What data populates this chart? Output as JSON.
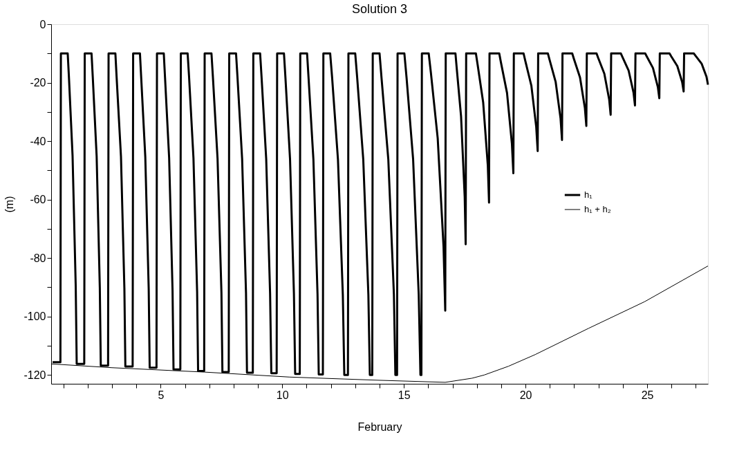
{
  "chart_data": {
    "type": "line",
    "title": "Solution 3",
    "xlabel": "February",
    "ylabel": "(m)",
    "xlim": [
      0.5,
      27.5
    ],
    "ylim": [
      -123,
      0
    ],
    "xticks": [
      {
        "value": 1,
        "label": null
      },
      {
        "value": 2,
        "label": null
      },
      {
        "value": 3,
        "label": null
      },
      {
        "value": 4,
        "label": null
      },
      5,
      {
        "value": 6,
        "label": null
      },
      {
        "value": 7,
        "label": null
      },
      {
        "value": 8,
        "label": null
      },
      {
        "value": 9,
        "label": null
      },
      10,
      {
        "value": 11,
        "label": null
      },
      {
        "value": 12,
        "label": null
      },
      {
        "value": 13,
        "label": null
      },
      {
        "value": 14,
        "label": null
      },
      15,
      {
        "value": 16,
        "label": null
      },
      {
        "value": 17,
        "label": null
      },
      {
        "value": 18,
        "label": null
      },
      {
        "value": 19,
        "label": null
      },
      20,
      {
        "value": 21,
        "label": null
      },
      {
        "value": 22,
        "label": null
      },
      {
        "value": 23,
        "label": null
      },
      {
        "value": 24,
        "label": null
      },
      25,
      {
        "value": 26,
        "label": null
      },
      {
        "value": 27,
        "label": null
      }
    ],
    "yticks": [
      -120,
      {
        "value": -110,
        "label": null
      },
      -100,
      {
        "value": -90,
        "label": null
      },
      -80,
      {
        "value": -70,
        "label": null
      },
      -60,
      {
        "value": -50,
        "label": null
      },
      -40,
      {
        "value": -30,
        "label": null
      },
      -20,
      {
        "value": -10,
        "label": null
      },
      0
    ],
    "grid": false,
    "legend": "right",
    "marker": "none",
    "line_style": "solid",
    "series": [
      {
        "name": "h₁",
        "color": "#000000",
        "x": [
          0.56,
          0.88,
          0.9,
          1.18,
          1.23,
          1.38,
          1.51,
          1.55,
          1.86,
          1.88,
          2.16,
          2.21,
          2.37,
          2.5,
          2.54,
          2.84,
          2.86,
          3.14,
          3.19,
          3.37,
          3.51,
          3.55,
          3.85,
          3.87,
          4.15,
          4.2,
          4.37,
          4.51,
          4.55,
          4.83,
          4.85,
          5.13,
          5.18,
          5.35,
          5.49,
          5.53,
          5.81,
          5.83,
          6.11,
          6.17,
          6.35,
          6.5,
          6.54,
          6.79,
          6.81,
          7.09,
          7.15,
          7.34,
          7.5,
          7.54,
          7.8,
          7.82,
          8.1,
          8.16,
          8.35,
          8.51,
          8.55,
          8.79,
          8.81,
          9.09,
          9.15,
          9.34,
          9.5,
          9.55,
          9.77,
          9.79,
          10.07,
          10.13,
          10.32,
          10.48,
          10.53,
          10.72,
          10.74,
          11.02,
          11.08,
          11.28,
          11.45,
          11.5,
          11.67,
          11.69,
          11.97,
          12.05,
          12.29,
          12.49,
          12.55,
          12.7,
          12.72,
          13.0,
          13.08,
          13.33,
          13.54,
          13.6,
          13.7,
          13.72,
          14.0,
          14.08,
          14.36,
          14.59,
          14.65,
          14.72,
          14.74,
          15.02,
          15.11,
          15.38,
          15.61,
          15.68,
          15.72,
          15.74,
          16.02,
          16.11,
          16.39,
          16.63,
          16.7,
          16.72,
          17.12,
          17.17,
          17.35,
          17.5,
          17.54,
          17.56,
          17.96,
          18.03,
          18.26,
          18.45,
          18.5,
          18.52,
          18.92,
          18.99,
          19.24,
          19.44,
          19.5,
          19.52,
          19.92,
          19.99,
          20.24,
          20.44,
          20.5,
          20.52,
          20.92,
          20.99,
          21.24,
          21.44,
          21.5,
          21.52,
          21.92,
          21.99,
          22.24,
          22.44,
          22.5,
          22.52,
          22.92,
          22.99,
          23.24,
          23.44,
          23.5,
          23.52,
          23.92,
          23.99,
          24.24,
          24.44,
          24.5,
          24.52,
          24.92,
          24.99,
          25.24,
          25.44,
          25.5,
          25.52,
          25.92,
          25.99,
          26.24,
          26.44,
          26.5,
          26.52,
          26.92,
          26.99,
          27.24,
          27.44,
          27.5
        ],
        "values": [
          -115.6,
          -115.6,
          -10,
          -10,
          -18.0,
          -45.0,
          -89.7,
          -116.2,
          -116.2,
          -10,
          -10,
          -18.0,
          -45.2,
          -90.1,
          -116.8,
          -116.8,
          -10,
          -10,
          -18.0,
          -45.3,
          -90.3,
          -117.1,
          -117.1,
          -10,
          -10,
          -18.1,
          -45.5,
          -90.6,
          -117.5,
          -117.5,
          -10,
          -10,
          -18.1,
          -45.7,
          -91.1,
          -118.1,
          -118.1,
          -10,
          -10,
          -18.1,
          -45.8,
          -91.5,
          -118.6,
          -118.6,
          -10,
          -10,
          -18.2,
          -46.0,
          -91.8,
          -119.0,
          -119.0,
          -10,
          -10,
          -18.2,
          -46.0,
          -91.9,
          -119.2,
          -119.2,
          -10,
          -10,
          -18.2,
          -46.1,
          -92.1,
          -119.4,
          -119.4,
          -10,
          -10,
          -18.2,
          -46.2,
          -92.2,
          -119.6,
          -119.6,
          -10,
          -10,
          -18.2,
          -46.2,
          -92.4,
          -119.8,
          -119.8,
          -10,
          -10,
          -18.3,
          -46.3,
          -92.5,
          -120,
          -120,
          -10,
          -10,
          -18.3,
          -46.3,
          -92.5,
          -120,
          -120,
          -10,
          -10,
          -18.3,
          -46.3,
          -92.5,
          -120,
          -120,
          -10,
          -10,
          -18.3,
          -46.3,
          -92.5,
          -120,
          -120,
          -10,
          -10,
          -16.6,
          -39.0,
          -76.0,
          -98,
          -10,
          -10,
          -14.9,
          -31.5,
          -59.0,
          -75.3,
          -10,
          -10,
          -13.8,
          -26.8,
          -48.3,
          -61,
          -10,
          -10,
          -13.1,
          -23.5,
          -40.8,
          -51,
          -10,
          -10,
          -12.5,
          -21.0,
          -35.1,
          -43.4,
          -10,
          -10,
          -12.2,
          -19.8,
          -32.2,
          -39.6,
          -10,
          -10,
          -11.9,
          -18.2,
          -28.6,
          -34.8,
          -10,
          -10,
          -11.6,
          -16.9,
          -25.8,
          -31,
          -10,
          -10,
          -11.3,
          -15.9,
          -23.4,
          -27.8,
          -10,
          -10,
          -11.1,
          -15.0,
          -21.5,
          -25.3,
          -10,
          -10,
          -11.0,
          -14.3,
          -19.8,
          -23,
          -10,
          -10,
          -10.8,
          -13.5,
          -18.0,
          -20.7
        ]
      },
      {
        "name": "h₁ + h₂",
        "color": "#000000",
        "x": [
          0.5,
          3,
          6.8,
          10.3,
          14,
          16.7,
          17.8,
          18.3,
          19.3,
          20.4,
          22.6,
          24.9,
          27.5
        ],
        "values": [
          -116.2,
          -117.5,
          -119,
          -120.7,
          -121.8,
          -122.5,
          -121.1,
          -120,
          -117,
          -113,
          -104,
          -94.9,
          -82.7
        ]
      }
    ]
  }
}
